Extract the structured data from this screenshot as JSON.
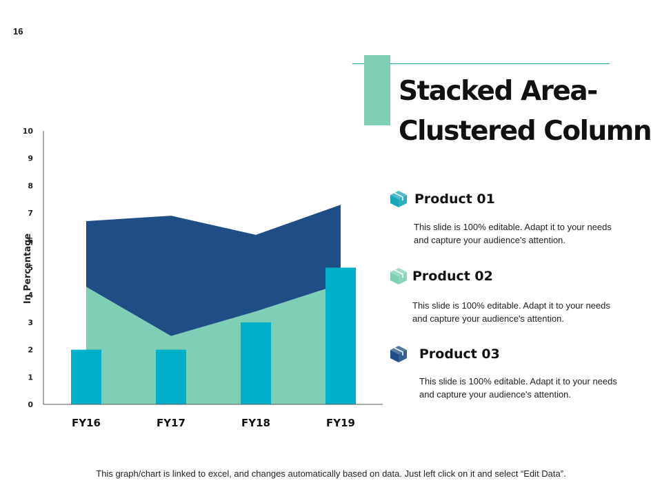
{
  "slide_number": "16",
  "title_lines": [
    "Stacked Area-",
    "Clustered Column"
  ],
  "chart_data": {
    "type": "area+bar",
    "categories": [
      "FY16",
      "FY17",
      "FY18",
      "FY19"
    ],
    "ylabel": "In Percentage",
    "ylim": [
      0,
      10
    ],
    "yticks": [
      "0",
      "1",
      "2",
      "3",
      "4",
      "5",
      "6",
      "7",
      "8",
      "9",
      "10"
    ],
    "grid": false,
    "series": [
      {
        "kind": "area",
        "values": [
          4.3,
          2.5,
          3.4,
          4.4
        ],
        "color": "#7ecfb6"
      },
      {
        "kind": "area",
        "values": [
          2.4,
          4.4,
          2.8,
          2.9
        ],
        "color": "#1f4e87"
      },
      {
        "kind": "column",
        "values": [
          2,
          2,
          3,
          5
        ],
        "color": "#00b0c8"
      }
    ]
  },
  "products": [
    {
      "name": "Product 01",
      "description": "This slide is 100% editable. Adapt it to your needs and capture your audience's attention.",
      "icon": "cube-icon",
      "color": "#17a7b8"
    },
    {
      "name": "Product 02",
      "description": "This slide is 100% editable. Adapt it to your needs and capture your audience's attention.",
      "icon": "cube-icon",
      "color": "#7ecfb6"
    },
    {
      "name": "Product 03",
      "description": "This slide is 100% editable. Adapt it to your needs and capture your audience's attention.",
      "icon": "cube-icon",
      "color": "#1f4e87"
    }
  ],
  "footer": "This graph/chart is linked to excel, and changes automatically based on data. Just left click on it and select “Edit Data”."
}
